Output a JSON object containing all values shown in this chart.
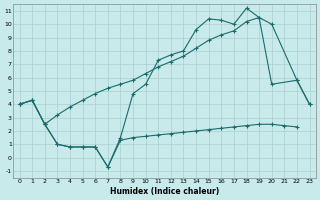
{
  "xlabel": "Humidex (Indice chaleur)",
  "background_color": "#c8eaea",
  "grid_color": "#aacece",
  "line_color": "#1a6b6b",
  "xlim": [
    -0.5,
    23.5
  ],
  "ylim": [
    -1.5,
    11.5
  ],
  "xticks": [
    0,
    1,
    2,
    3,
    4,
    5,
    6,
    7,
    8,
    9,
    10,
    11,
    12,
    13,
    14,
    15,
    16,
    17,
    18,
    19,
    20,
    21,
    22,
    23
  ],
  "yticks": [
    -1,
    0,
    1,
    2,
    3,
    4,
    5,
    6,
    7,
    8,
    9,
    10,
    11
  ],
  "line1": {
    "x": [
      0,
      1,
      2,
      3,
      4,
      5,
      6,
      7,
      8,
      9,
      10,
      11,
      12,
      13,
      14,
      15,
      16,
      17,
      18,
      19,
      20,
      22,
      23
    ],
    "y": [
      4.0,
      4.3,
      2.5,
      1.0,
      0.8,
      0.8,
      0.8,
      -0.7,
      1.5,
      4.8,
      5.5,
      7.3,
      7.7,
      8.0,
      9.6,
      10.4,
      10.3,
      10.0,
      11.2,
      10.5,
      5.5,
      5.8,
      4.0
    ]
  },
  "line2": {
    "x": [
      0,
      1,
      2,
      3,
      4,
      5,
      6,
      7,
      8,
      9,
      10,
      11,
      12,
      13,
      14,
      15,
      16,
      17,
      18,
      19,
      20,
      21,
      22
    ],
    "y": [
      4.0,
      4.3,
      2.5,
      1.0,
      0.8,
      0.8,
      0.8,
      -0.7,
      1.3,
      1.5,
      1.6,
      1.7,
      1.8,
      1.9,
      2.0,
      2.1,
      2.2,
      2.3,
      2.4,
      2.5,
      2.5,
      2.4,
      2.3
    ]
  },
  "line3": {
    "x": [
      0,
      1,
      2,
      3,
      4,
      5,
      6,
      7,
      8,
      9,
      10,
      11,
      12,
      13,
      14,
      15,
      16,
      17,
      18,
      19,
      20,
      22,
      23
    ],
    "y": [
      4.0,
      4.3,
      2.5,
      3.2,
      3.8,
      4.3,
      4.8,
      5.2,
      5.5,
      5.8,
      6.3,
      6.8,
      7.2,
      7.6,
      8.2,
      8.8,
      9.2,
      9.5,
      10.2,
      10.5,
      10.0,
      5.8,
      4.0
    ]
  }
}
